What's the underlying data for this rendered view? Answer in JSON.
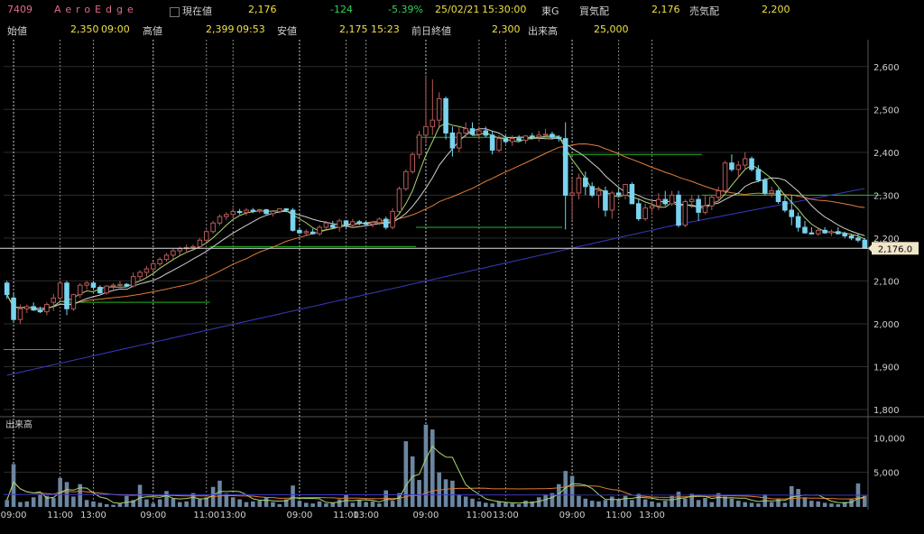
{
  "header": {
    "code": "7409",
    "name": "AeroEdge",
    "current_label": "現在値",
    "current_value": "2,176",
    "change": "-124",
    "change_pct": "-5.39%",
    "date": "25/02/21",
    "time": "15:30:00",
    "market": "東G",
    "bid_label": "買気配",
    "bid_value": "2,176",
    "ask_label": "売気配",
    "ask_value": "2,200",
    "open_label": "始値",
    "open_value": "2,350",
    "open_time": "09:00",
    "high_label": "高値",
    "high_value": "2,399",
    "high_time": "09:53",
    "low_label": "安値",
    "low_value": "2,175",
    "low_time": "15:23",
    "prev_label": "前日終値",
    "prev_value": "2,300",
    "vol_label": "出来高",
    "vol_value": "25,000"
  },
  "chart_data": {
    "type": "candlestick",
    "price_ylim": [
      1800,
      2650
    ],
    "price_ticks": [
      "1,800",
      "1,900",
      "2,000",
      "2,100",
      "2,200",
      "2,300",
      "2,400",
      "2,500",
      "2,600"
    ],
    "volume_label": "出来高",
    "volume_ylim": [
      0,
      12000
    ],
    "volume_ticks": [
      "5,000",
      "10,000"
    ],
    "time_labels": [
      "09:00",
      "11:00",
      "13:00",
      "09:00",
      "11:00",
      "13:00",
      "09:00",
      "11:00",
      "13:00",
      "09:00",
      "11:00",
      "13:00",
      "09:00",
      "11:00",
      "13:00"
    ],
    "current_price_label": "2,176.0",
    "current_price": 2176,
    "colors": {
      "up": "#b85a5a",
      "down": "#7ad3ef",
      "ma_short": "#a8d870",
      "ma_mid": "#e07b3a",
      "ma_long": "#3a3ac0",
      "ma_vlong": "#d0d0d0",
      "level": "#22b822",
      "grid": "#2b2b2b",
      "session": "#8c8c8c"
    },
    "candles": [
      [
        2095,
        2100,
        2058,
        2068,
        1000
      ],
      [
        2060,
        2070,
        2005,
        2010,
        6200
      ],
      [
        2010,
        2045,
        2000,
        2035,
        700
      ],
      [
        2035,
        2045,
        2025,
        2040,
        800
      ],
      [
        2040,
        2050,
        2030,
        2032,
        1400
      ],
      [
        2032,
        2040,
        2025,
        2028,
        1800
      ],
      [
        2028,
        2050,
        2020,
        2045,
        1600
      ],
      [
        2050,
        2070,
        2030,
        2060,
        1300
      ],
      [
        2060,
        2100,
        2055,
        2095,
        4200
      ],
      [
        2095,
        2100,
        2020,
        2035,
        3600
      ],
      [
        2035,
        2070,
        2030,
        2068,
        1500
      ],
      [
        2068,
        2095,
        2060,
        2090,
        3300
      ],
      [
        2090,
        2100,
        2080,
        2095,
        1000
      ],
      [
        2095,
        2100,
        2080,
        2085,
        800
      ],
      [
        2085,
        2090,
        2070,
        2072,
        600
      ],
      [
        2072,
        2090,
        2068,
        2088,
        400
      ],
      [
        2088,
        2095,
        2080,
        2090,
        300
      ],
      [
        2090,
        2100,
        2085,
        2092,
        500
      ],
      [
        2092,
        2095,
        2085,
        2088,
        1600
      ],
      [
        2088,
        2120,
        2085,
        2110,
        1000
      ],
      [
        2110,
        2125,
        2100,
        2120,
        3200
      ],
      [
        2120,
        2135,
        2110,
        2128,
        1100
      ],
      [
        2128,
        2145,
        2120,
        2140,
        500
      ],
      [
        2140,
        2155,
        2135,
        2150,
        1100
      ],
      [
        2150,
        2165,
        2145,
        2160,
        2300
      ],
      [
        2160,
        2175,
        2150,
        2170,
        1200
      ],
      [
        2170,
        2180,
        2160,
        2175,
        700
      ],
      [
        2175,
        2185,
        2165,
        2178,
        800
      ],
      [
        2178,
        2185,
        2170,
        2180,
        2000
      ],
      [
        2180,
        2200,
        2175,
        2195,
        1100
      ],
      [
        2195,
        2220,
        2190,
        2215,
        1400
      ],
      [
        2215,
        2240,
        2210,
        2235,
        2900
      ],
      [
        2235,
        2255,
        2230,
        2250,
        3800
      ],
      [
        2250,
        2260,
        2242,
        2255,
        1900
      ],
      [
        2255,
        2270,
        2250,
        2262,
        1400
      ],
      [
        2262,
        2268,
        2255,
        2260,
        1100
      ],
      [
        2260,
        2270,
        2252,
        2265,
        700
      ],
      [
        2265,
        2270,
        2258,
        2264,
        800
      ],
      [
        2264,
        2268,
        2258,
        2266,
        900
      ],
      [
        2266,
        2268,
        2255,
        2257,
        1400
      ],
      [
        2257,
        2265,
        2250,
        2262,
        700
      ],
      [
        2262,
        2270,
        2258,
        2268,
        400
      ],
      [
        2268,
        2270,
        2260,
        2265,
        1100
      ],
      [
        2265,
        2270,
        2215,
        2218,
        3100
      ],
      [
        2218,
        2225,
        2210,
        2212,
        900
      ],
      [
        2212,
        2220,
        2205,
        2215,
        600
      ],
      [
        2214,
        2222,
        2208,
        2210,
        500
      ],
      [
        2210,
        2230,
        2205,
        2225,
        800
      ],
      [
        2225,
        2240,
        2220,
        2235,
        500
      ],
      [
        2230,
        2240,
        2222,
        2225,
        600
      ],
      [
        2225,
        2245,
        2215,
        2240,
        1100
      ],
      [
        2240,
        2240,
        2220,
        2230,
        1700
      ],
      [
        2230,
        2245,
        2225,
        2238,
        600
      ],
      [
        2238,
        2242,
        2230,
        2236,
        1000
      ],
      [
        2236,
        2240,
        2228,
        2232,
        700
      ],
      [
        2232,
        2240,
        2225,
        2236,
        800
      ],
      [
        2236,
        2248,
        2230,
        2244,
        500
      ],
      [
        2244,
        2250,
        2220,
        2225,
        2400
      ],
      [
        2225,
        2270,
        2220,
        2262,
        900
      ],
      [
        2262,
        2320,
        2258,
        2315,
        2000
      ],
      [
        2315,
        2360,
        2310,
        2355,
        9500
      ],
      [
        2355,
        2400,
        2350,
        2395,
        7300
      ],
      [
        2395,
        2450,
        2385,
        2440,
        3900
      ],
      [
        2440,
        2580,
        2420,
        2460,
        11900
      ],
      [
        2460,
        2570,
        2440,
        2475,
        11200
      ],
      [
        2475,
        2540,
        2460,
        2525,
        5000
      ],
      [
        2525,
        2530,
        2430,
        2445,
        4000
      ],
      [
        2445,
        2460,
        2390,
        2410,
        3800
      ],
      [
        2410,
        2460,
        2400,
        2445,
        1800
      ],
      [
        2445,
        2470,
        2435,
        2455,
        1500
      ],
      [
        2455,
        2470,
        2440,
        2442,
        1200
      ],
      [
        2442,
        2460,
        2430,
        2450,
        800
      ],
      [
        2450,
        2460,
        2435,
        2440,
        600
      ],
      [
        2440,
        2450,
        2395,
        2405,
        500
      ],
      [
        2405,
        2440,
        2400,
        2432,
        800
      ],
      [
        2432,
        2440,
        2420,
        2425,
        600
      ],
      [
        2425,
        2440,
        2415,
        2432,
        500
      ],
      [
        2432,
        2440,
        2425,
        2428,
        400
      ],
      [
        2428,
        2440,
        2420,
        2438,
        900
      ],
      [
        2438,
        2445,
        2430,
        2436,
        800
      ],
      [
        2436,
        2450,
        2425,
        2440,
        1400
      ],
      [
        2440,
        2455,
        2430,
        2442,
        1800
      ],
      [
        2442,
        2448,
        2430,
        2435,
        2000
      ],
      [
        2435,
        2440,
        2425,
        2432,
        3300
      ],
      [
        2432,
        2470,
        2220,
        2300,
        5200
      ],
      [
        2300,
        2340,
        2240,
        2305,
        4500
      ],
      [
        2305,
        2350,
        2290,
        2340,
        1600
      ],
      [
        2340,
        2355,
        2300,
        2320,
        1200
      ],
      [
        2320,
        2330,
        2295,
        2300,
        900
      ],
      [
        2300,
        2320,
        2270,
        2310,
        800
      ],
      [
        2310,
        2320,
        2250,
        2265,
        1000
      ],
      [
        2265,
        2310,
        2245,
        2305,
        1500
      ],
      [
        2305,
        2315,
        2295,
        2300,
        1100
      ],
      [
        2300,
        2320,
        2290,
        2325,
        1600
      ],
      [
        2325,
        2330,
        2280,
        2280,
        1000
      ],
      [
        2280,
        2290,
        2240,
        2245,
        1900
      ],
      [
        2245,
        2280,
        2240,
        2270,
        1100
      ],
      [
        2270,
        2290,
        2260,
        2275,
        800
      ],
      [
        2275,
        2305,
        2265,
        2290,
        600
      ],
      [
        2290,
        2310,
        2275,
        2280,
        900
      ],
      [
        2280,
        2310,
        2275,
        2300,
        1600
      ],
      [
        2300,
        2310,
        2225,
        2230,
        2200
      ],
      [
        2230,
        2290,
        2225,
        2285,
        1200
      ],
      [
        2285,
        2300,
        2270,
        2290,
        1900
      ],
      [
        2290,
        2300,
        2240,
        2260,
        1000
      ],
      [
        2260,
        2300,
        2255,
        2275,
        1300
      ],
      [
        2275,
        2300,
        2265,
        2295,
        700
      ],
      [
        2295,
        2320,
        2285,
        2310,
        2000
      ],
      [
        2310,
        2380,
        2300,
        2375,
        1500
      ],
      [
        2375,
        2395,
        2355,
        2360,
        1200
      ],
      [
        2360,
        2380,
        2340,
        2370,
        900
      ],
      [
        2370,
        2400,
        2360,
        2385,
        700
      ],
      [
        2385,
        2390,
        2355,
        2360,
        600
      ],
      [
        2360,
        2370,
        2330,
        2335,
        500
      ],
      [
        2335,
        2340,
        2300,
        2305,
        1800
      ],
      [
        2305,
        2320,
        2295,
        2310,
        700
      ],
      [
        2310,
        2315,
        2280,
        2285,
        1100
      ],
      [
        2285,
        2300,
        2260,
        2265,
        600
      ],
      [
        2265,
        2300,
        2230,
        2250,
        3000
      ],
      [
        2250,
        2260,
        2215,
        2225,
        2600
      ],
      [
        2225,
        2240,
        2210,
        2212,
        1400
      ],
      [
        2212,
        2225,
        2208,
        2210,
        900
      ],
      [
        2210,
        2222,
        2205,
        2218,
        800
      ],
      [
        2218,
        2225,
        2210,
        2212,
        600
      ],
      [
        2212,
        2220,
        2205,
        2215,
        500
      ],
      [
        2215,
        2225,
        2208,
        2210,
        400
      ],
      [
        2210,
        2215,
        2200,
        2205,
        700
      ],
      [
        2205,
        2210,
        2195,
        2200,
        1100
      ],
      [
        2200,
        2210,
        2190,
        2195,
        3400
      ],
      [
        2195,
        2200,
        2175,
        2176,
        1600
      ]
    ],
    "sessions": [
      0,
      21,
      43,
      62,
      84,
      105
    ],
    "levels": [
      {
        "price": 1940,
        "x0": 0,
        "x1": 9
      },
      {
        "price": 2050,
        "x0": 9,
        "x1": 31
      },
      {
        "price": 2180,
        "x0": 31,
        "x1": 62
      },
      {
        "price": 2225,
        "x0": 62,
        "x1": 84
      },
      {
        "price": 2435,
        "x0": 62,
        "x1": 84
      },
      {
        "price": 2395,
        "x0": 84,
        "x1": 105
      },
      {
        "price": 2300,
        "x0": 105,
        "x1": 132
      }
    ]
  }
}
